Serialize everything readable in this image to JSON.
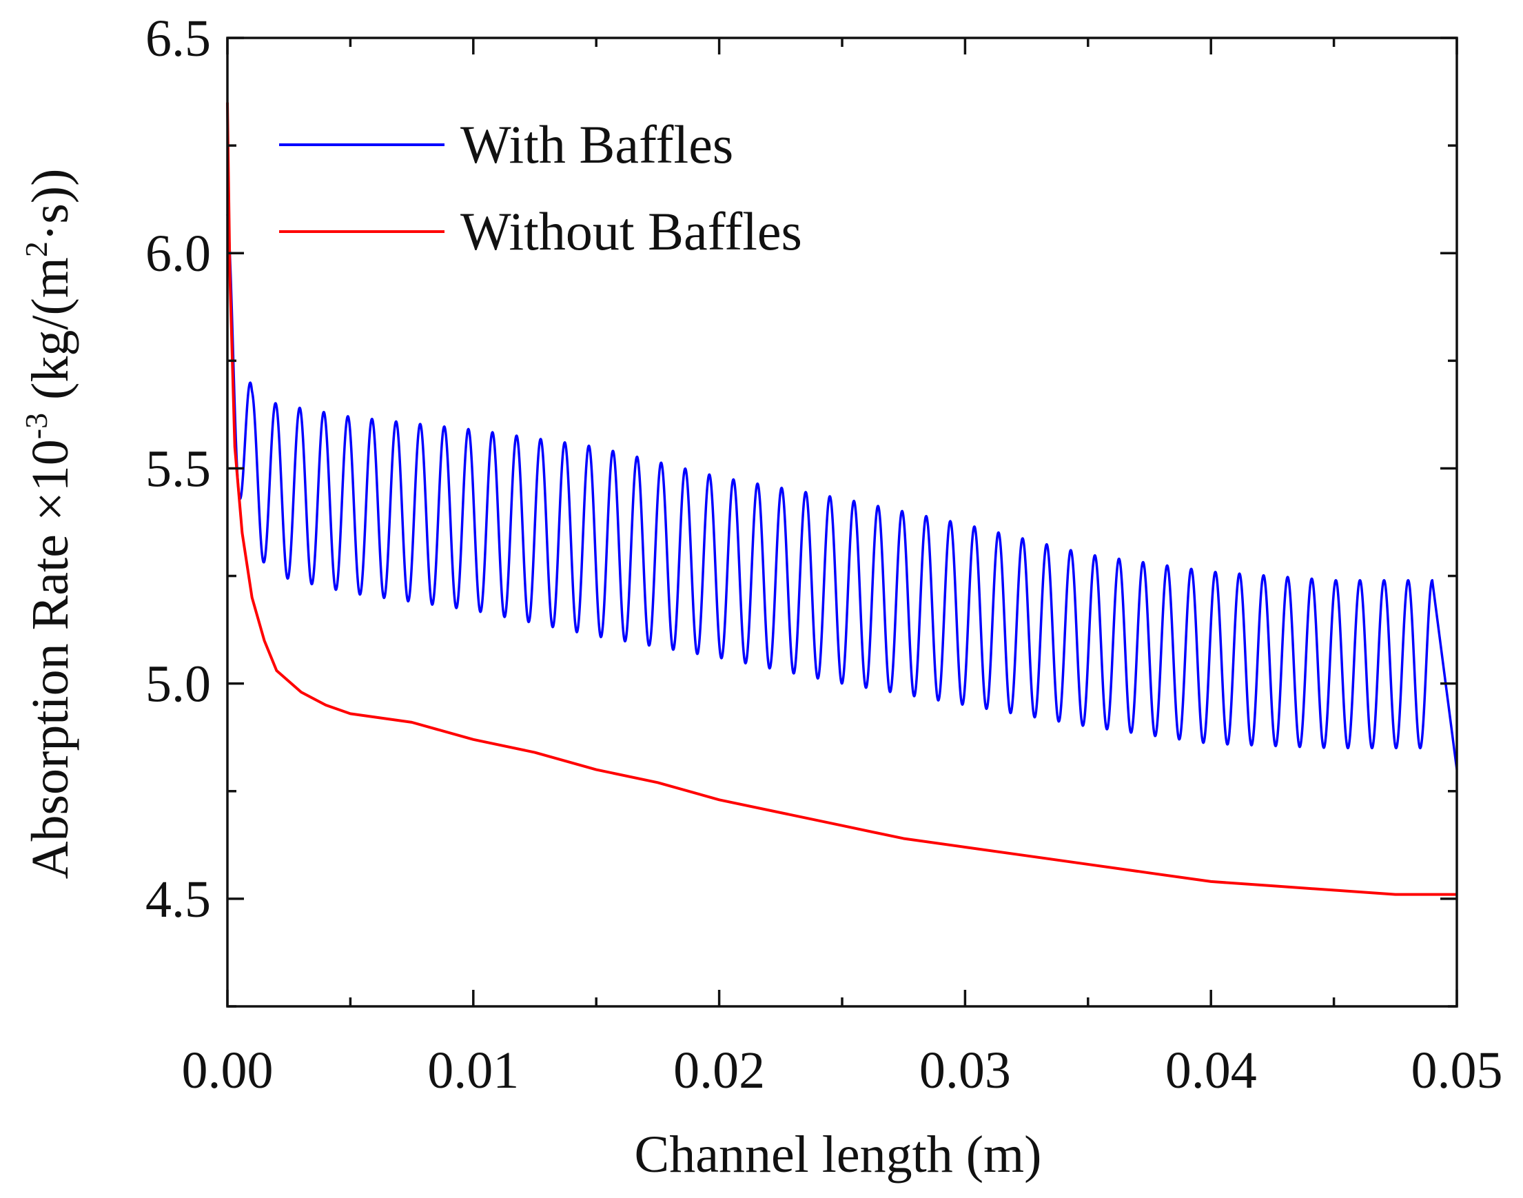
{
  "chart_data": {
    "type": "line",
    "title": "",
    "xlabel": "Channel length (m)",
    "ylabel": {
      "prefix": "Absorption Rate ×10",
      "exponent": "-3",
      "middle": " (kg/(m",
      "unit_exponent": "2",
      "suffix": "·s))"
    },
    "xlim": [
      0.0,
      0.05
    ],
    "ylim": [
      4.25,
      6.5
    ],
    "x_ticks": [
      0.0,
      0.01,
      0.02,
      0.03,
      0.04,
      0.05
    ],
    "x_tick_labels": [
      "0.00",
      "0.01",
      "0.02",
      "0.03",
      "0.04",
      "0.05"
    ],
    "y_ticks": [
      4.5,
      5.0,
      5.5,
      6.0,
      6.5
    ],
    "y_tick_labels": [
      "4.5",
      "5.0",
      "5.5",
      "6.0",
      "6.5"
    ],
    "grid": false,
    "legend_position": "top-left",
    "series": [
      {
        "name": "With Baffles",
        "color": "#0000ff",
        "oscillation_periods": 50,
        "x": [
          0.0,
          0.001,
          0.002,
          0.005,
          0.01,
          0.015,
          0.02,
          0.025,
          0.03,
          0.035,
          0.04,
          0.045,
          0.049
        ],
        "upper_envelope": [
          6.09,
          5.68,
          5.65,
          5.62,
          5.59,
          5.55,
          5.48,
          5.43,
          5.37,
          5.3,
          5.26,
          5.24,
          5.24
        ],
        "lower_envelope": [
          5.55,
          5.31,
          5.25,
          5.21,
          5.17,
          5.11,
          5.06,
          5.0,
          4.95,
          4.9,
          4.86,
          4.85,
          4.85
        ],
        "end_point": [
          0.05,
          4.8
        ]
      },
      {
        "name": "Without Baffles",
        "color": "#ff0000",
        "x": [
          0.0,
          0.0001,
          0.0003,
          0.0006,
          0.001,
          0.0015,
          0.002,
          0.003,
          0.004,
          0.005,
          0.0075,
          0.01,
          0.0125,
          0.015,
          0.0175,
          0.02,
          0.0225,
          0.025,
          0.0275,
          0.03,
          0.0325,
          0.035,
          0.0375,
          0.04,
          0.0425,
          0.045,
          0.0475,
          0.05
        ],
        "y": [
          6.35,
          5.95,
          5.55,
          5.35,
          5.2,
          5.1,
          5.03,
          4.98,
          4.95,
          4.93,
          4.91,
          4.87,
          4.84,
          4.8,
          4.77,
          4.73,
          4.7,
          4.67,
          4.64,
          4.62,
          4.6,
          4.58,
          4.56,
          4.54,
          4.53,
          4.52,
          4.51,
          4.51
        ]
      }
    ]
  }
}
